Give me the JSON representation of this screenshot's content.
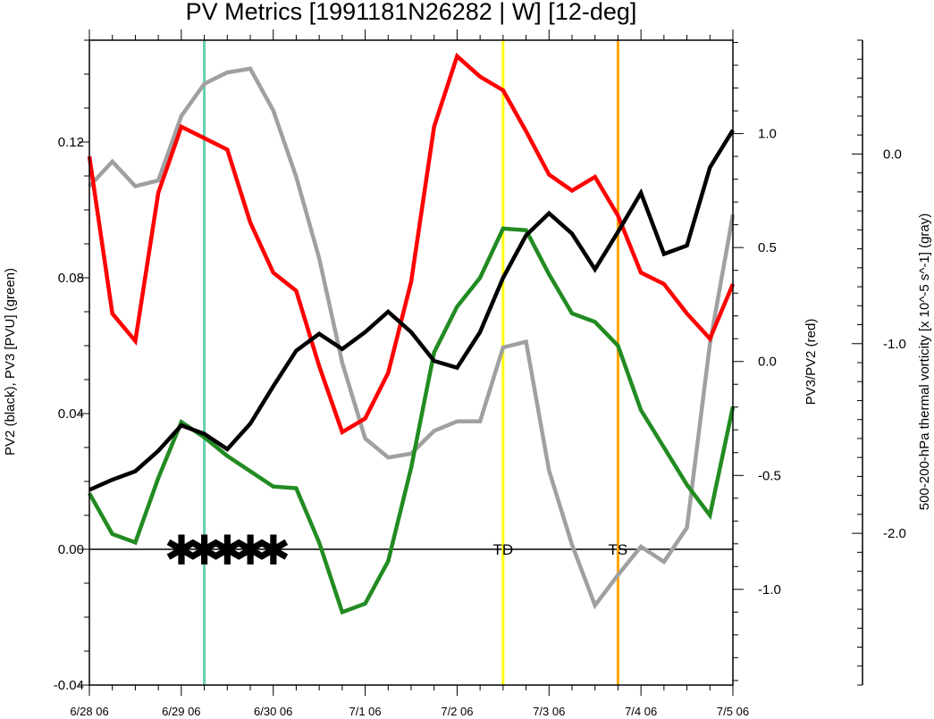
{
  "chart_data": {
    "type": "line",
    "title": "PV Metrics [1991181N26282 | W] [12-deg]",
    "xlabel": "",
    "x_tick_labels": [
      "6/28 06",
      "6/29 06",
      "6/30 06",
      "7/1 06",
      "7/2 06",
      "7/3 06",
      "7/4 06",
      "7/5 06"
    ],
    "x_range": [
      0,
      7
    ],
    "left_axis": {
      "label": "PV2 (black), PV3 [PVU] (green)",
      "range": [
        -0.04,
        0.15
      ],
      "ticks": [
        {
          "value": -0.04,
          "label": "-0.04"
        },
        {
          "value": 0.0,
          "label": "0.00"
        },
        {
          "value": 0.04,
          "label": "0.04"
        },
        {
          "value": 0.08,
          "label": "0.08"
        },
        {
          "value": 0.12,
          "label": "0.12"
        }
      ]
    },
    "right_axis": {
      "label": "PV3/PV2 (red)",
      "range": [
        -1.42,
        1.41
      ],
      "ticks": [
        {
          "value": -1.0,
          "label": "-1.0"
        },
        {
          "value": -0.5,
          "label": "-0.5"
        },
        {
          "value": 0.0,
          "label": "0.0"
        },
        {
          "value": 0.5,
          "label": "0.5"
        },
        {
          "value": 1.0,
          "label": "1.0"
        }
      ]
    },
    "far_right_axis": {
      "label": "500-200-hPa thermal vorticity [x 10^-5 s^-1] (gray)",
      "range": [
        -2.8,
        0.6
      ],
      "ticks": [
        {
          "value": 0.0,
          "label": "0.0"
        },
        {
          "value": -1.0,
          "label": "-1.0"
        },
        {
          "value": -2.0,
          "label": "-2.0"
        }
      ]
    },
    "series": [
      {
        "name": "PV2",
        "color": "#000000",
        "axis": "left",
        "x": [
          0,
          0.25,
          0.5,
          0.75,
          1,
          1.25,
          1.5,
          1.75,
          2,
          2.25,
          2.5,
          2.75,
          3,
          3.25,
          3.5,
          3.75,
          4,
          4.25,
          4.5,
          4.75,
          5,
          5.25,
          5.5,
          5.75,
          6,
          6.25,
          6.5,
          6.75,
          7
        ],
        "values": [
          0.0175,
          0.0205,
          0.023,
          0.029,
          0.0365,
          0.034,
          0.0295,
          0.037,
          0.048,
          0.0585,
          0.0635,
          0.059,
          0.064,
          0.07,
          0.064,
          0.0555,
          0.0535,
          0.064,
          0.08,
          0.0925,
          0.099,
          0.093,
          0.0825,
          0.0935,
          0.105,
          0.087,
          0.0895,
          0.1125,
          0.1235
        ]
      },
      {
        "name": "PV3",
        "color": "#228b22",
        "axis": "left",
        "x": [
          0,
          0.25,
          0.5,
          0.75,
          1,
          1.25,
          1.5,
          1.75,
          2,
          2.25,
          2.5,
          2.75,
          3,
          3.25,
          3.5,
          3.75,
          4,
          4.25,
          4.5,
          4.75,
          5,
          5.25,
          5.5,
          5.75,
          6,
          6.25,
          6.5,
          6.75,
          7
        ],
        "values": [
          0.0165,
          0.0045,
          0.002,
          0.021,
          0.0375,
          0.033,
          0.0275,
          0.023,
          0.0185,
          0.018,
          0.002,
          -0.0185,
          -0.016,
          -0.0035,
          0.024,
          0.058,
          0.0715,
          0.08,
          0.0945,
          0.094,
          0.081,
          0.0695,
          0.067,
          0.06,
          0.041,
          0.03,
          0.019,
          0.01,
          0.042
        ]
      },
      {
        "name": "PV3/PV2",
        "color": "#ff0000",
        "axis": "right",
        "x": [
          0,
          0.25,
          0.5,
          0.75,
          1,
          1.25,
          1.5,
          1.75,
          2,
          2.25,
          2.5,
          2.75,
          3,
          3.25,
          3.5,
          3.75,
          4,
          4.25,
          4.5,
          4.75,
          5,
          5.25,
          5.5,
          5.75,
          6,
          6.25,
          6.5,
          6.75,
          7
        ],
        "values": [
          0.9,
          0.21,
          0.09,
          0.74,
          1.03,
          0.98,
          0.93,
          0.61,
          0.39,
          0.31,
          -0.02,
          -0.31,
          -0.25,
          -0.05,
          0.35,
          1.03,
          1.34,
          1.25,
          1.19,
          1.01,
          0.82,
          0.75,
          0.81,
          0.64,
          0.39,
          0.34,
          0.21,
          0.1,
          0.34
        ]
      },
      {
        "name": "500-200-hPa thermal vorticity",
        "color": "#a0a0a0",
        "axis": "far_right",
        "x": [
          0,
          0.25,
          0.5,
          0.75,
          1,
          1.25,
          1.5,
          1.75,
          2,
          2.25,
          2.5,
          2.75,
          3,
          3.25,
          3.5,
          3.75,
          4,
          4.25,
          4.5,
          4.75,
          5,
          5.25,
          5.5,
          5.75,
          6,
          6.25,
          6.5,
          6.75,
          7
        ],
        "values": [
          -0.17,
          -0.04,
          -0.17,
          -0.14,
          0.2,
          0.37,
          0.43,
          0.45,
          0.23,
          -0.12,
          -0.55,
          -1.1,
          -1.5,
          -1.6,
          -1.58,
          -1.46,
          -1.41,
          -1.41,
          -1.02,
          -0.99,
          -1.67,
          -2.06,
          -2.38,
          -2.22,
          -2.07,
          -2.15,
          -1.97,
          -1.0,
          -0.32
        ]
      }
    ],
    "vertical_lines": [
      {
        "x": 1.25,
        "color": "#66d0b0",
        "label": ""
      },
      {
        "x": 4.5,
        "color": "#ffff00",
        "label": "TD"
      },
      {
        "x": 5.75,
        "color": "#ffa500",
        "label": "TS"
      }
    ],
    "zero_line": 0.0,
    "star_markers": {
      "x": [
        1.0,
        1.25,
        1.5,
        1.75,
        2.0
      ],
      "y": 0.0,
      "glyph": "✱"
    }
  }
}
